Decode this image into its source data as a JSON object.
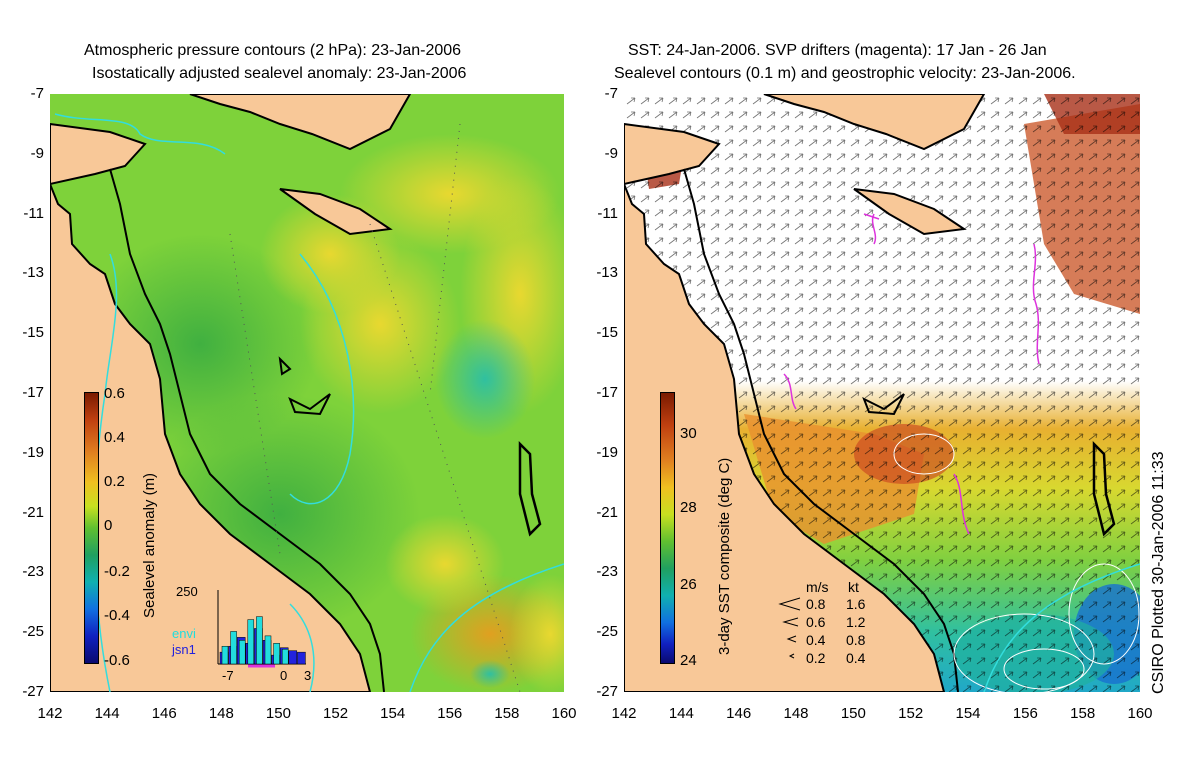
{
  "left_panel": {
    "title_line1": "Atmospheric pressure contours (2 hPa): 23-Jan-2006",
    "title_line2": "Isostatically adjusted sealevel anomaly: 23-Jan-2006",
    "colorbar_label": "Sealevel anomaly (m)",
    "colorbar_ticks": [
      "0.6",
      "0.4",
      "0.2",
      "0",
      "-0.2",
      "-0.4",
      "-0.6"
    ],
    "inset": {
      "ymax_label": "250",
      "x_ticks": [
        "-7",
        "0",
        "3"
      ],
      "legend": [
        {
          "label": "envi",
          "color": "#22dddd"
        },
        {
          "label": "jsn1",
          "color": "#2222dd"
        }
      ],
      "bars_envi": [
        60,
        110,
        80,
        150,
        160,
        95,
        70,
        50
      ],
      "bars_jsn1": [
        40,
        60,
        90,
        70,
        120,
        80,
        30,
        55,
        45,
        40
      ]
    }
  },
  "right_panel": {
    "title_line1": "SST: 24-Jan-2006. SVP drifters (magenta): 17 Jan - 26 Jan",
    "title_line2": "Sealevel contours (0.1 m) and geostrophic velocity: 23-Jan-2006.",
    "colorbar_label": "3-day SST composite (deg C)",
    "colorbar_ticks": [
      "30",
      "28",
      "26",
      "24"
    ],
    "velocity_scale": {
      "header_ms": "m/s",
      "header_kt": "kt",
      "rows": [
        {
          "ms": "0.8",
          "kt": "1.6"
        },
        {
          "ms": "0.6",
          "kt": "1.2"
        },
        {
          "ms": "0.4",
          "kt": "0.8"
        },
        {
          "ms": "0.2",
          "kt": "0.4"
        }
      ]
    }
  },
  "lat_ticks": [
    "-7",
    "-9",
    "-11",
    "-13",
    "-15",
    "-17",
    "-19",
    "-21",
    "-23",
    "-25",
    "-27"
  ],
  "lon_ticks": [
    "142",
    "144",
    "146",
    "148",
    "150",
    "152",
    "154",
    "156",
    "158",
    "160"
  ],
  "credit": "CSIRO Plotted 30-Jan-2006 11:33",
  "colors": {
    "land": "#f8c898",
    "contour": "#33dddd",
    "drifter": "#dd33dd"
  }
}
